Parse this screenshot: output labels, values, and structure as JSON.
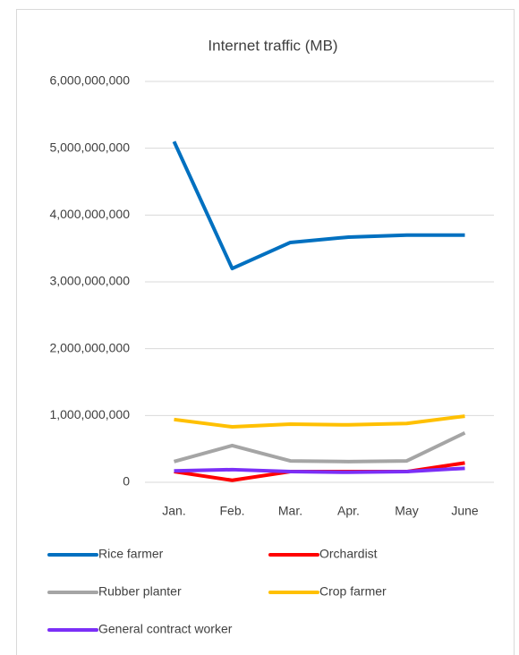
{
  "chart_data": {
    "type": "line",
    "title": "Internet traffic (MB)",
    "categories": [
      "Jan.",
      "Feb.",
      "Mar.",
      "Apr.",
      "May",
      "June"
    ],
    "series": [
      {
        "name": "Rice farmer",
        "color": "#0070c0",
        "values": [
          5100000000,
          3200000000,
          3590000000,
          3670000000,
          3700000000,
          3700000000
        ]
      },
      {
        "name": "Orchardist",
        "color": "#ff0000",
        "values": [
          160000000,
          30000000,
          160000000,
          160000000,
          160000000,
          290000000
        ]
      },
      {
        "name": "Rubber planter",
        "color": "#a5a5a5",
        "values": [
          310000000,
          550000000,
          320000000,
          310000000,
          320000000,
          740000000
        ]
      },
      {
        "name": "Crop farmer",
        "color": "#ffc000",
        "values": [
          940000000,
          830000000,
          870000000,
          860000000,
          880000000,
          990000000
        ]
      },
      {
        "name": "General contract worker",
        "color": "#7b2ff7",
        "values": [
          170000000,
          190000000,
          160000000,
          150000000,
          160000000,
          210000000
        ]
      }
    ],
    "ylim": [
      0,
      6000000000
    ],
    "yticks": [
      0,
      {
        "value": 1000000000,
        "label": "1,000,000,000"
      },
      {
        "value": 2000000000,
        "label": "2,000,000,000"
      },
      {
        "value": 3000000000,
        "label": "3,000,000,000"
      },
      {
        "value": 4000000000,
        "label": "4,000,000,000"
      },
      {
        "value": 5000000000,
        "label": "5,000,000,000"
      },
      {
        "value": 6000000000,
        "label": "6,000,000,000"
      }
    ],
    "grid": true,
    "legend": "bottom"
  }
}
